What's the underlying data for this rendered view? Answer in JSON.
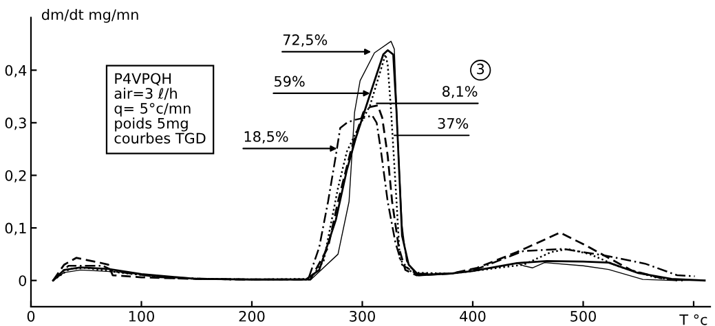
{
  "chart_data": {
    "type": "line",
    "ylabel": "dm/dt mg/mn",
    "xlabel": "T °c",
    "xlim": [
      0,
      615
    ],
    "ylim": [
      -0.05,
      0.5
    ],
    "xticks": [
      0,
      100,
      200,
      300,
      400,
      500,
      {
        "value": 600,
        "label": null
      }
    ],
    "yticks": [
      0,
      {
        "value": 0.1,
        "label": "0,1"
      },
      {
        "value": 0.2,
        "label": "0,2"
      },
      {
        "value": 0.3,
        "label": "0,3"
      },
      {
        "value": 0.4,
        "label": "0,4"
      }
    ],
    "grid": false,
    "legend": false,
    "marker": "none",
    "series": [
      {
        "color": "#000000",
        "line_style": "solid",
        "x": [
          20,
          30,
          45,
          80,
          120,
          160,
          200,
          253,
          278,
          288,
          293,
          298,
          311,
          326,
          329,
          332,
          336,
          340,
          348,
          370,
          401,
          440,
          446,
          454,
          465,
          500,
          523,
          554,
          580,
          610
        ],
        "values": [
          0,
          0.015,
          0.02,
          0.016,
          0.006,
          0.002,
          0.001,
          0.001,
          0.05,
          0.15,
          0.32,
          0.38,
          0.433,
          0.455,
          0.44,
          0.28,
          0.106,
          0.037,
          0.013,
          0.012,
          0.018,
          0.033,
          0.028,
          0.024,
          0.034,
          0.028,
          0.021,
          0.002,
          0,
          0
        ]
      },
      {
        "color": "#000000",
        "line_style": "solid",
        "x": [
          20,
          30,
          45,
          70,
          100,
          150,
          200,
          249,
          261,
          276,
          286,
          294,
          307,
          319,
          323,
          328,
          331,
          336,
          342,
          351,
          380,
          400,
          440,
          467,
          500,
          523,
          550,
          580,
          610
        ],
        "values": [
          0,
          0.02,
          0.025,
          0.022,
          0.012,
          0.003,
          0.002,
          0.002,
          0.02,
          0.115,
          0.21,
          0.27,
          0.354,
          0.43,
          0.438,
          0.43,
          0.32,
          0.085,
          0.03,
          0.01,
          0.013,
          0.018,
          0.033,
          0.037,
          0.036,
          0.034,
          0.014,
          0.003,
          0
        ]
      },
      {
        "color": "#000000",
        "line_style": "dashed",
        "x": [
          20,
          30,
          41,
          60,
          70,
          74,
          100,
          150,
          200,
          253,
          269,
          278,
          290,
          301,
          307,
          314,
          318,
          323,
          327,
          333,
          339,
          349,
          380,
          404,
          440,
          479,
          502,
          523,
          544,
          575,
          590
        ],
        "values": [
          0,
          0.03,
          0.043,
          0.035,
          0.03,
          0.01,
          0.006,
          0.003,
          0.002,
          0.002,
          0.063,
          0.15,
          0.25,
          0.32,
          0.33,
          0.333,
          0.31,
          0.237,
          0.15,
          0.063,
          0.02,
          0.01,
          0.013,
          0.024,
          0.054,
          0.091,
          0.067,
          0.043,
          0.019,
          0.002,
          0
        ]
      },
      {
        "color": "#000000",
        "line_style": "dotted",
        "x": [
          20,
          35,
          50,
          80,
          130,
          200,
          253,
          265,
          278,
          286,
          294,
          307,
          321,
          323,
          326,
          331,
          334,
          345,
          380,
          400,
          446,
          471,
          486,
          506,
          533,
          565,
          585
        ],
        "values": [
          0,
          0.022,
          0.024,
          0.015,
          0.004,
          0.002,
          0.003,
          0.037,
          0.176,
          0.245,
          0.28,
          0.333,
          0.43,
          0.41,
          0.324,
          0.15,
          0.04,
          0.015,
          0.013,
          0.018,
          0.03,
          0.054,
          0.06,
          0.05,
          0.026,
          0.006,
          0
        ]
      },
      {
        "color": "#000000",
        "line_style": "dashdot",
        "x": [
          20,
          34,
          65,
          76,
          117,
          180,
          251,
          261,
          269,
          276,
          280,
          286,
          292,
          303,
          309,
          313,
          317,
          323,
          330,
          336,
          349,
          380,
          404,
          446,
          482,
          521,
          556,
          585,
          601
        ],
        "values": [
          0,
          0.028,
          0.028,
          0.017,
          0.006,
          0.002,
          0.002,
          0.063,
          0.15,
          0.237,
          0.29,
          0.3,
          0.305,
          0.31,
          0.314,
          0.3,
          0.245,
          0.15,
          0.072,
          0.03,
          0.013,
          0.013,
          0.022,
          0.056,
          0.06,
          0.047,
          0.032,
          0.01,
          0.008
        ]
      }
    ],
    "annotations": [
      {
        "text": "72,5%",
        "x": 308,
        "y": 0.435
      },
      {
        "text": "59%",
        "x": 307,
        "y": 0.356
      },
      {
        "text": "8,1%",
        "x": 313,
        "y": 0.337
      },
      {
        "text": "37%",
        "x": 329,
        "y": 0.276
      },
      {
        "text": "18,5%",
        "x": 277,
        "y": 0.251
      },
      "P4VPQH\nair=3 ℓ/h\nq= 5°c/mn\npoids 5mg\ncourbes TGD",
      "3"
    ]
  }
}
